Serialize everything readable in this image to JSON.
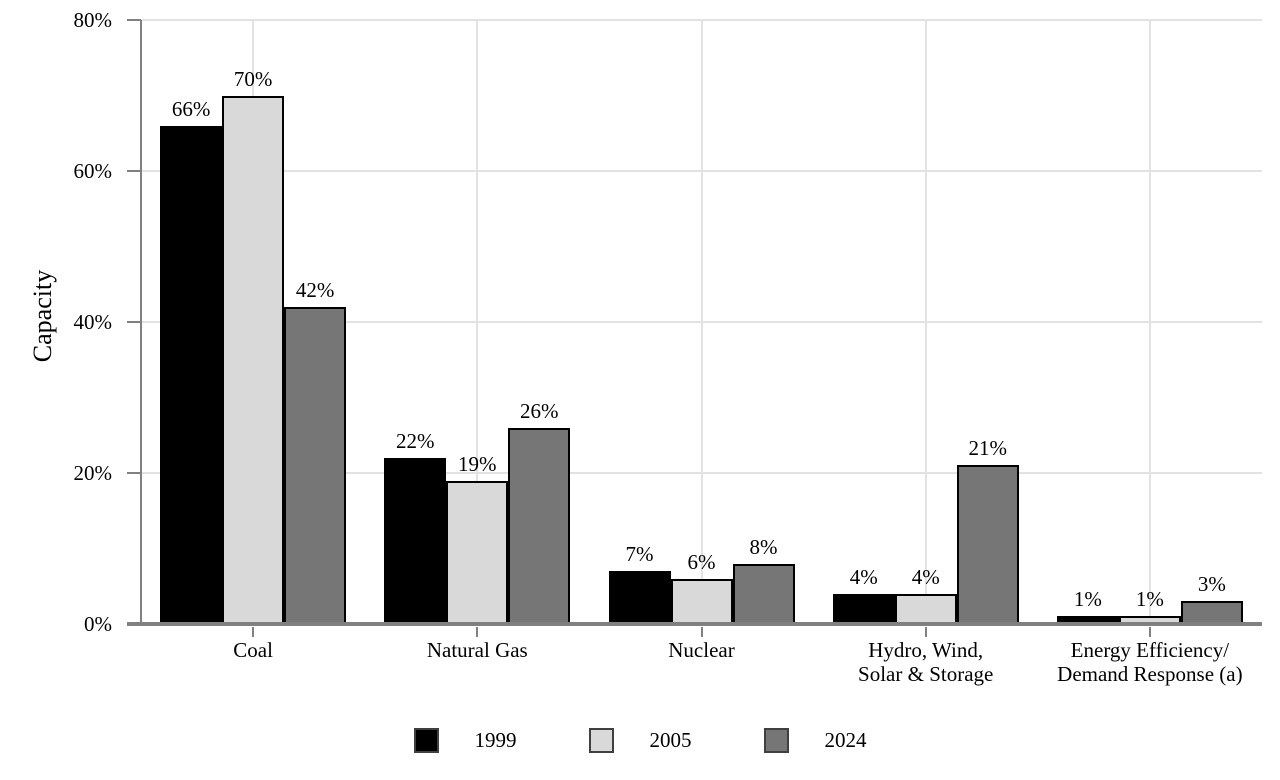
{
  "chart_data": {
    "type": "bar",
    "title": "",
    "xlabel": "",
    "ylabel": "Capacity",
    "categories": [
      [
        "Coal"
      ],
      [
        "Natural Gas"
      ],
      [
        "Nuclear"
      ],
      [
        "Hydro, Wind,",
        "Solar & Storage"
      ],
      [
        "Energy Efficiency/",
        "Demand Response (a)"
      ]
    ],
    "series": [
      {
        "name": "1999",
        "color": "#000000",
        "values": [
          66,
          22,
          7,
          4,
          1
        ]
      },
      {
        "name": "2005",
        "color": "#d9d9d9",
        "values": [
          70,
          19,
          6,
          4,
          1
        ]
      },
      {
        "name": "2024",
        "color": "#767676",
        "values": [
          42,
          26,
          8,
          21,
          3
        ]
      }
    ],
    "value_suffix": "%",
    "ylim": [
      0,
      80
    ],
    "yticks": [
      0,
      20,
      40,
      60,
      80
    ],
    "ytick_labels": [
      "0%",
      "20%",
      "40%",
      "60%",
      "80%"
    ],
    "grid": true,
    "legend_position": "bottom",
    "colors": {
      "grid": "#e2e2e2",
      "axis": "#808080",
      "bar_border": "#000000",
      "legend_swatch_border": "#404040",
      "text": "#000000",
      "background": "#ffffff"
    }
  }
}
